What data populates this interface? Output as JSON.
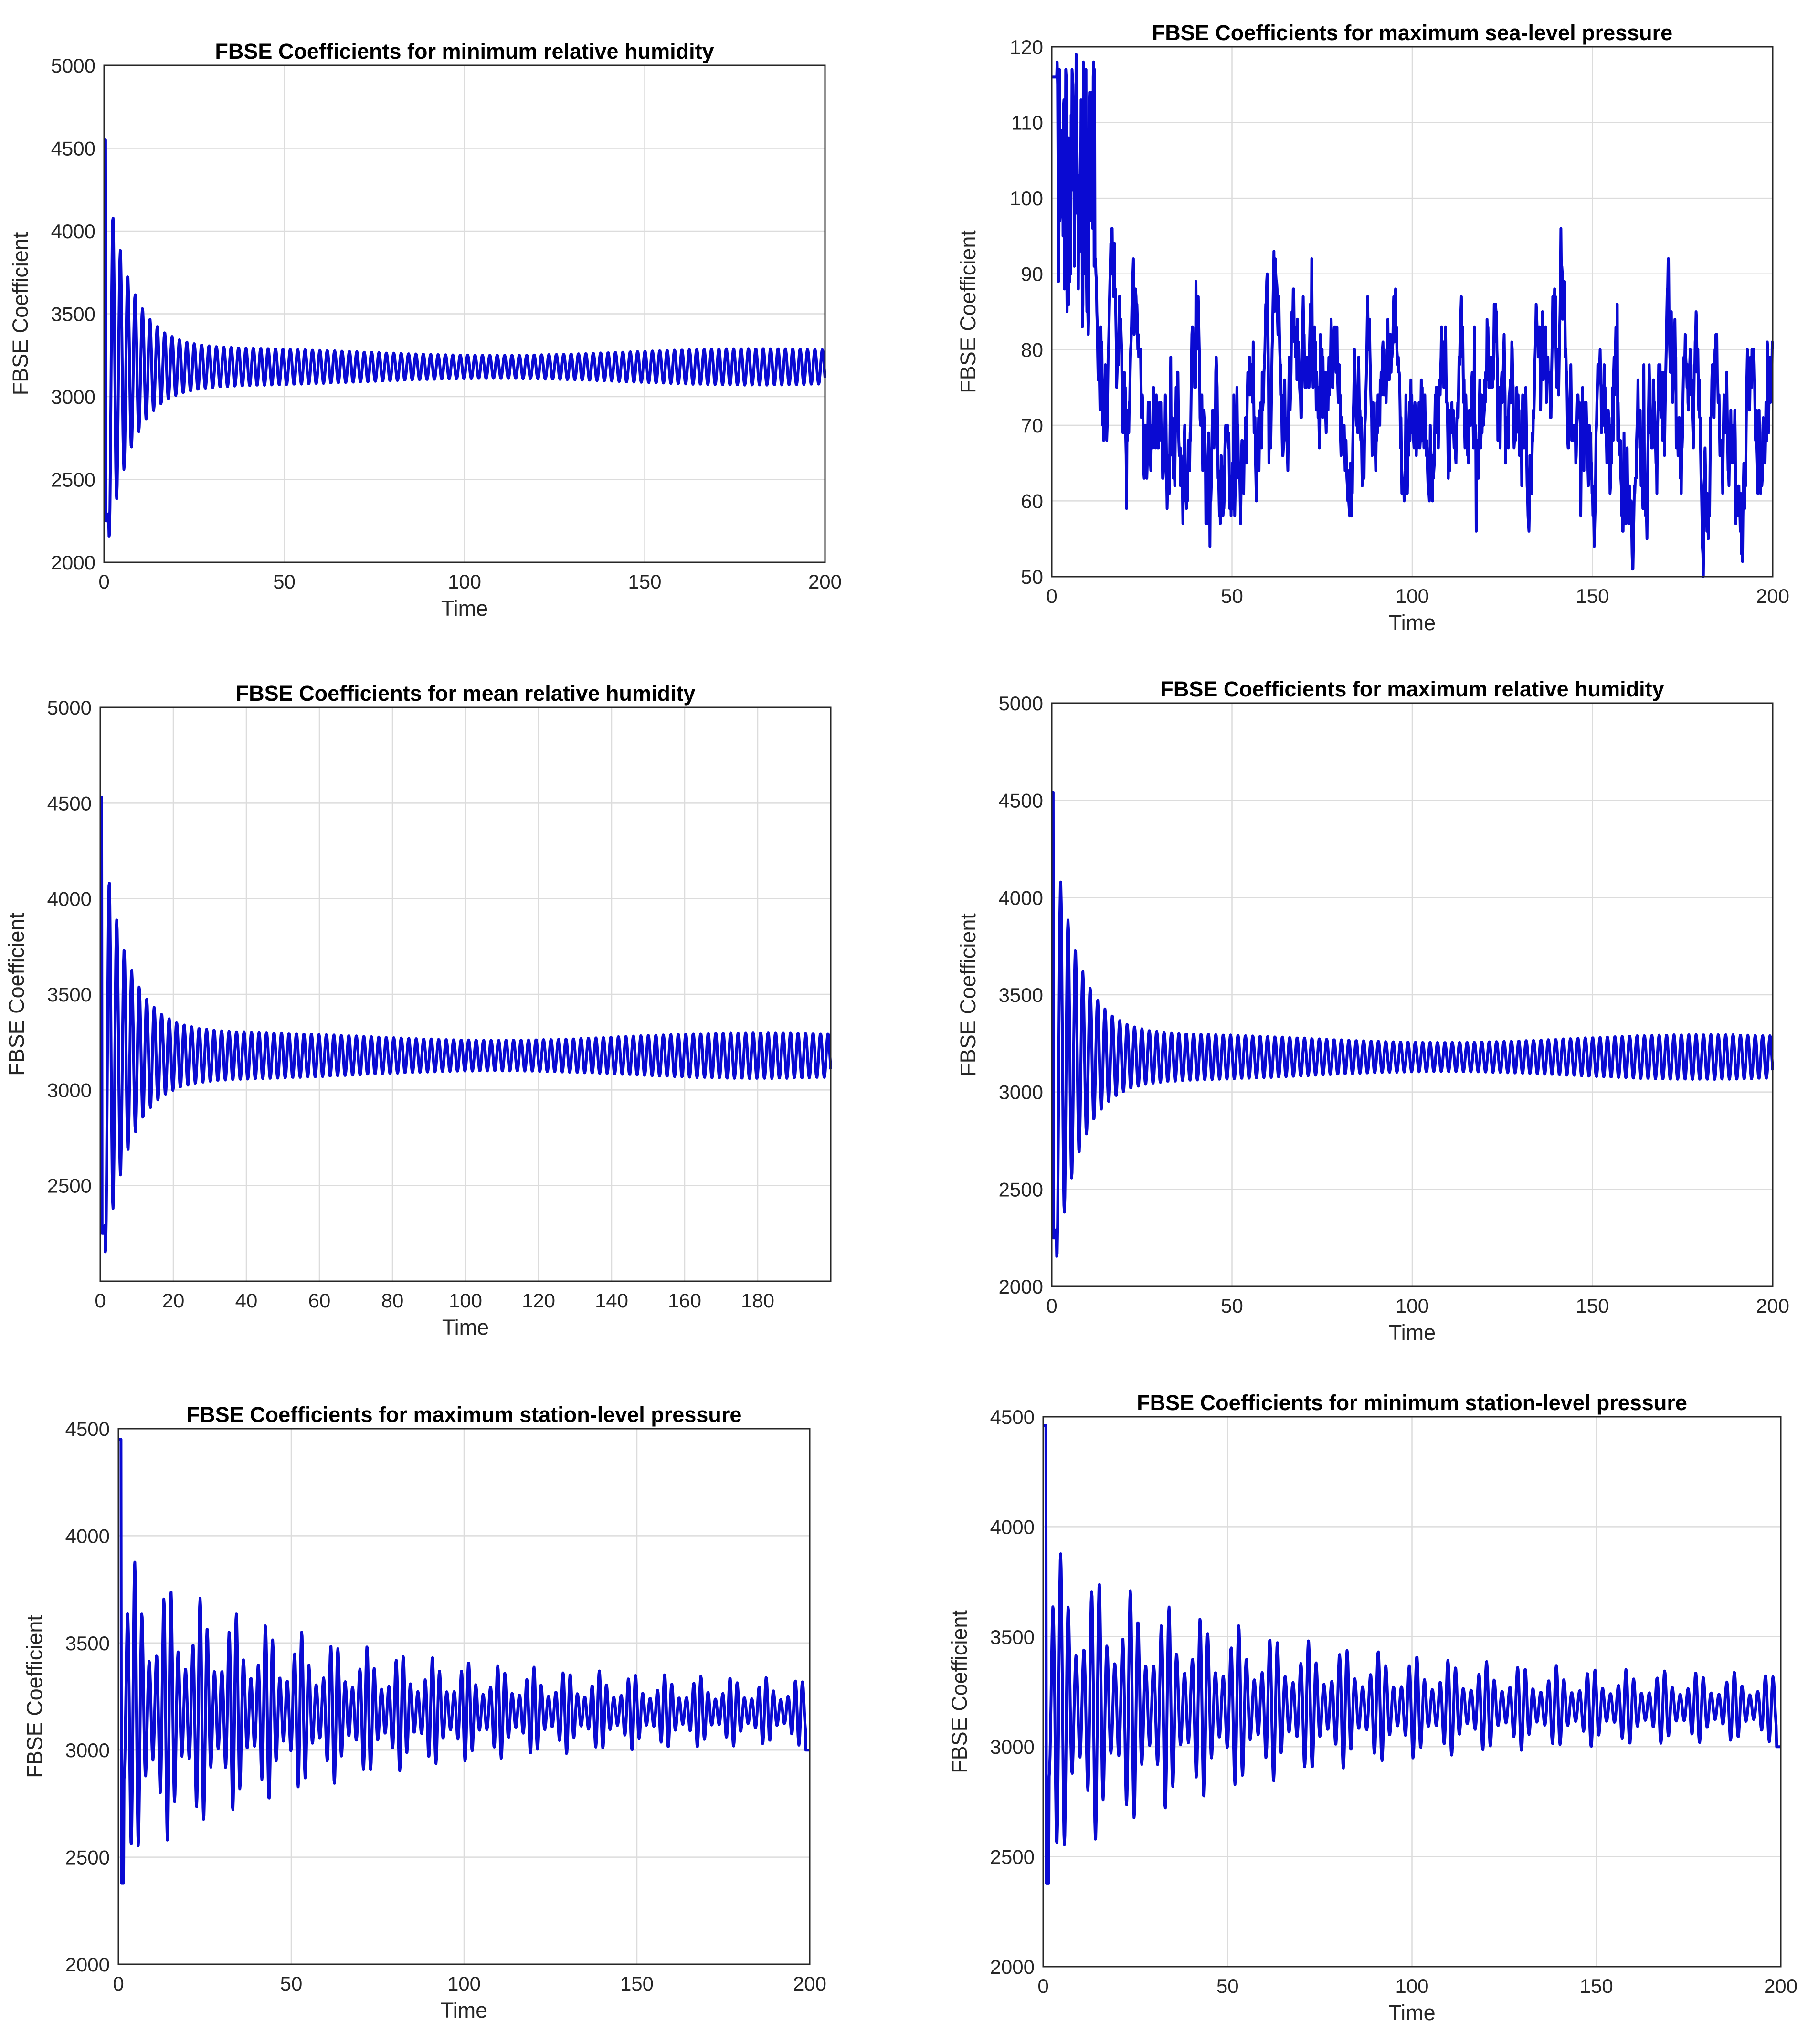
{
  "colors": {
    "series": "#0a0ad2",
    "grid": "#dcdcdc",
    "axis": "#262626",
    "background": "#ffffff"
  },
  "chart_data": [
    {
      "type": "line",
      "title": "FBSE Coefficients for minimum relative humidity",
      "xlabel": "Time",
      "ylabel": "FBSE Coefficient",
      "xlim": [
        0,
        200
      ],
      "ylim": [
        2000,
        5000
      ],
      "xticks": [
        0,
        50,
        100,
        150,
        200
      ],
      "yticks": [
        2000,
        2500,
        3000,
        3500,
        4000,
        4500,
        5000
      ],
      "grid": true,
      "series": [
        {
          "values": [],
          "signal": {
            "kind": "damped",
            "base": 3180,
            "start": 4550,
            "startLow": 2250,
            "period": 2.05,
            "amp0": 1250,
            "tau": 7,
            "ampInf": 90,
            "swell": 20
          }
        }
      ]
    },
    {
      "type": "line",
      "title": "FBSE Coefficients for maximum sea-level pressure",
      "xlabel": "Time",
      "ylabel": "FBSE Coefficient",
      "xlim": [
        0,
        200
      ],
      "ylim": [
        50,
        120
      ],
      "xticks": [
        0,
        50,
        100,
        150,
        200
      ],
      "yticks": [
        50,
        60,
        70,
        80,
        90,
        100,
        110,
        120
      ],
      "grid": true,
      "series": [
        {
          "values": [],
          "signal": {
            "kind": "noisy",
            "base": 72,
            "start": 116,
            "early": 101,
            "earlyEnd": 12,
            "noise": 5.5,
            "seed": 7
          }
        }
      ]
    },
    {
      "type": "line",
      "title": "FBSE Coefficients for mean relative humidity",
      "xlabel": "Time",
      "ylabel": "FBSE Coefficient",
      "xlim": [
        0,
        200
      ],
      "ylim": [
        2000,
        5000
      ],
      "xticks": [
        0,
        20,
        40,
        60,
        80,
        100,
        120,
        140,
        160,
        180
      ],
      "yticks": [
        2500,
        3000,
        3500,
        4000,
        4500,
        5000
      ],
      "grid": true,
      "series": [
        {
          "values": [],
          "signal": {
            "kind": "damped",
            "base": 3180,
            "start": 4530,
            "startLow": 2250,
            "period": 2.05,
            "amp0": 1250,
            "tau": 7,
            "ampInf": 100,
            "swell": 20
          }
        }
      ]
    },
    {
      "type": "line",
      "title": "FBSE Coefficients for maximum relative humidity",
      "xlabel": "Time",
      "ylabel": "FBSE Coefficient",
      "xlim": [
        0,
        200
      ],
      "ylim": [
        2000,
        5000
      ],
      "xticks": [
        0,
        50,
        100,
        150,
        200
      ],
      "yticks": [
        2000,
        2500,
        3000,
        3500,
        4000,
        4500,
        5000
      ],
      "grid": true,
      "series": [
        {
          "values": [],
          "signal": {
            "kind": "damped",
            "base": 3180,
            "start": 4540,
            "startLow": 2250,
            "period": 2.05,
            "amp0": 1250,
            "tau": 7,
            "ampInf": 95,
            "swell": 20
          }
        }
      ]
    },
    {
      "type": "line",
      "title": "FBSE Coefficients for maximum station-level pressure",
      "xlabel": "Time",
      "ylabel": "FBSE Coefficient",
      "xlim": [
        0,
        200
      ],
      "ylim": [
        2000,
        4500
      ],
      "xticks": [
        0,
        50,
        100,
        150,
        200
      ],
      "yticks": [
        2000,
        2500,
        3000,
        3500,
        4000,
        4500
      ],
      "grid": true,
      "series": [
        {
          "values": [],
          "signal": {
            "kind": "bursty",
            "base": 3180,
            "start": 4450,
            "startLow": 2380,
            "period": 2.1,
            "amp0": 750,
            "tau": 55,
            "ampInf": 140,
            "beat": 9.6,
            "end": 3000
          }
        }
      ]
    },
    {
      "type": "line",
      "title": "FBSE Coefficients for minimum station-level pressure",
      "xlabel": "Time",
      "ylabel": "FBSE Coefficient",
      "xlim": [
        0,
        200
      ],
      "ylim": [
        2000,
        4500
      ],
      "xticks": [
        0,
        50,
        100,
        150,
        200
      ],
      "yticks": [
        2000,
        2500,
        3000,
        3500,
        4000,
        4500
      ],
      "grid": true,
      "series": [
        {
          "values": [],
          "signal": {
            "kind": "bursty",
            "base": 3180,
            "start": 4460,
            "startLow": 2380,
            "period": 2.1,
            "amp0": 750,
            "tau": 55,
            "ampInf": 140,
            "beat": 9.6,
            "end": 3000
          }
        }
      ]
    }
  ]
}
